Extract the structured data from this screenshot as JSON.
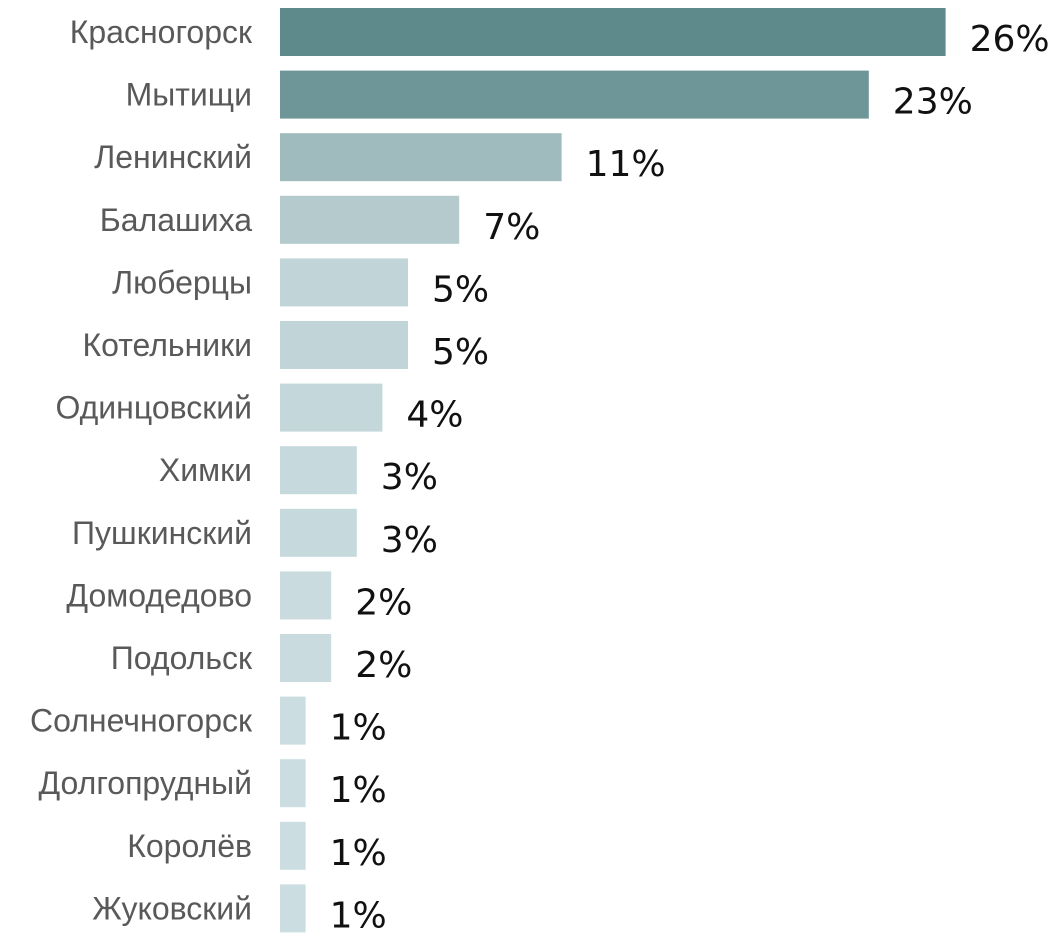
{
  "chart_data": {
    "type": "bar",
    "orientation": "horizontal",
    "categories": [
      "Красногорск",
      "Мытищи",
      "Ленинский",
      "Балашиха",
      "Люберцы",
      "Котельники",
      "Одинцовский",
      "Химки",
      "Пушкинский",
      "Домодедово",
      "Подольск",
      "Солнечногорск",
      "Долгопрудный",
      "Королёв",
      "Жуковский"
    ],
    "values": [
      26,
      23,
      11,
      7,
      5,
      5,
      4,
      3,
      3,
      2,
      2,
      1,
      1,
      1,
      1
    ],
    "value_labels": [
      "26%",
      "23%",
      "11%",
      "7%",
      "5%",
      "5%",
      "4%",
      "3%",
      "3%",
      "2%",
      "2%",
      "1%",
      "1%",
      "1%",
      "1%"
    ],
    "bar_colors": [
      "#5f8a8b",
      "#6e9597",
      "#a0bbbd",
      "#b4cacc",
      "#c1d4d7",
      "#c1d4d7",
      "#c4d7da",
      "#c6d9dc",
      "#c6d9dc",
      "#c9dbde",
      "#c9dbde",
      "#cbdde0",
      "#cbdde0",
      "#cbdde0",
      "#cbdde0"
    ],
    "title": "",
    "xlabel": "",
    "ylabel": "",
    "unit": "%",
    "grid": false,
    "legend": "none"
  }
}
